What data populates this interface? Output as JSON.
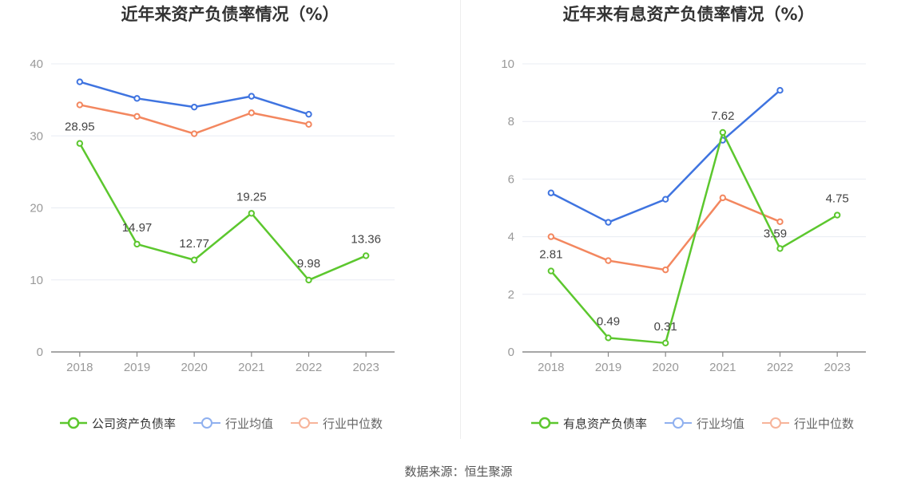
{
  "source": "数据来源：恒生聚源",
  "colors": {
    "company": "#5cc72e",
    "industry_avg": "#3f74e0",
    "industry_median": "#f3875f",
    "grid": "#e8ecf3",
    "axis": "#999999",
    "label": "#444444"
  },
  "chart_data": [
    {
      "type": "line",
      "title": "近年来资产负债率情况（%）",
      "categories": [
        "2018",
        "2019",
        "2020",
        "2021",
        "2022",
        "2023"
      ],
      "ylim": [
        0,
        40
      ],
      "yticks": [
        "0",
        "10",
        "20",
        "30",
        "40"
      ],
      "grid": true,
      "legend_position": "bottom",
      "series": [
        {
          "name": "公司资产负债率",
          "color": "#5cc72e",
          "values": [
            28.95,
            14.97,
            12.77,
            19.25,
            9.98,
            13.36
          ],
          "labels": [
            "28.95",
            "14.97",
            "12.77",
            "19.25",
            "9.98",
            "13.36"
          ]
        },
        {
          "name": "行业均值",
          "color": "#3f74e0",
          "values": [
            37.5,
            35.2,
            34.0,
            35.5,
            33.0,
            null
          ]
        },
        {
          "name": "行业中位数",
          "color": "#f3875f",
          "values": [
            34.3,
            32.7,
            30.3,
            33.2,
            31.6,
            null
          ]
        }
      ]
    },
    {
      "type": "line",
      "title": "近年来有息资产负债率情况（%）",
      "categories": [
        "2018",
        "2019",
        "2020",
        "2021",
        "2022",
        "2023"
      ],
      "ylim": [
        0,
        10
      ],
      "yticks": [
        "0",
        "2",
        "4",
        "6",
        "8",
        "10"
      ],
      "grid": true,
      "legend_position": "bottom",
      "series": [
        {
          "name": "有息资产负债率",
          "color": "#5cc72e",
          "values": [
            2.81,
            0.49,
            0.31,
            7.62,
            3.59,
            4.75
          ],
          "labels": [
            "2.81",
            "0.49",
            "0.31",
            "7.62",
            "3.59",
            "4.75"
          ]
        },
        {
          "name": "行业均值",
          "color": "#3f74e0",
          "values": [
            5.52,
            4.5,
            5.3,
            7.35,
            9.08,
            null
          ]
        },
        {
          "name": "行业中位数",
          "color": "#f3875f",
          "values": [
            4.0,
            3.17,
            2.85,
            5.35,
            4.52,
            null
          ]
        }
      ]
    }
  ]
}
